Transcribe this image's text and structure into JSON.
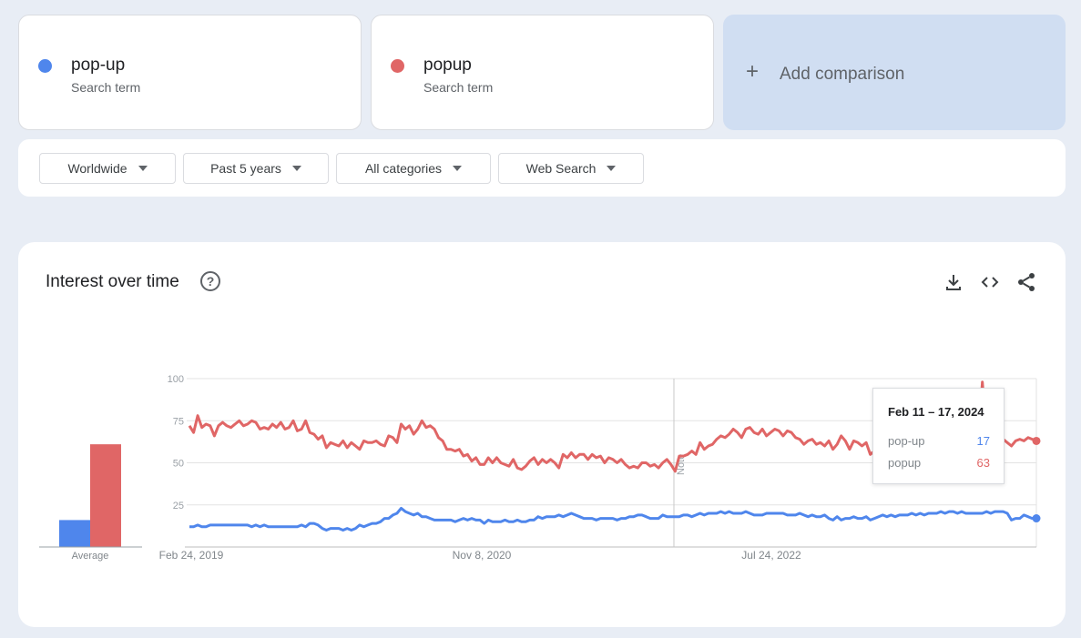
{
  "terms": [
    {
      "name": "pop-up",
      "subtitle": "Search term",
      "color": "#4f86ec"
    },
    {
      "name": "popup",
      "subtitle": "Search term",
      "color": "#e06666"
    }
  ],
  "add_comparison": {
    "label": "Add comparison",
    "icon": "plus-icon"
  },
  "filters": [
    {
      "label": "Worldwide"
    },
    {
      "label": "Past 5 years"
    },
    {
      "label": "All categories"
    },
    {
      "label": "Web Search"
    }
  ],
  "chart_section": {
    "title": "Interest over time",
    "help_icon": "help-circle-icon",
    "tools": [
      "download-icon",
      "embed-code-icon",
      "share-icon"
    ]
  },
  "chart_data": {
    "type": "line",
    "x_start": "Feb 24, 2019",
    "x_tick_labels": [
      "Feb 24, 2019",
      "Nov 8, 2020",
      "Jul 24, 2022"
    ],
    "y_ticks": [
      25,
      50,
      75,
      100
    ],
    "ylim": [
      0,
      100
    ],
    "grid": true,
    "note_label": "Note",
    "series": [
      {
        "name": "pop-up",
        "color": "#4f86ec",
        "average": 16,
        "values": [
          12,
          12,
          13,
          12,
          12,
          13,
          13,
          13,
          13,
          13,
          13,
          13,
          13,
          13,
          13,
          12,
          13,
          12,
          13,
          12,
          12,
          12,
          12,
          12,
          12,
          12,
          12,
          13,
          12,
          14,
          14,
          13,
          11,
          10,
          11,
          11,
          11,
          10,
          11,
          10,
          11,
          13,
          12,
          13,
          14,
          14,
          15,
          17,
          17,
          19,
          20,
          23,
          21,
          20,
          19,
          20,
          18,
          18,
          17,
          16,
          16,
          16,
          16,
          16,
          15,
          16,
          17,
          16,
          17,
          16,
          16,
          14,
          16,
          15,
          15,
          15,
          16,
          15,
          15,
          16,
          15,
          15,
          16,
          16,
          18,
          17,
          18,
          18,
          18,
          19,
          18,
          19,
          20,
          19,
          18,
          17,
          17,
          17,
          16,
          17,
          17,
          17,
          17,
          16,
          17,
          17,
          18,
          18,
          19,
          19,
          18,
          17,
          17,
          17,
          19,
          18,
          18,
          18,
          18,
          19,
          19,
          18,
          19,
          20,
          19,
          20,
          20,
          20,
          21,
          20,
          21,
          20,
          20,
          20,
          21,
          20,
          19,
          19,
          19,
          20,
          20,
          20,
          20,
          20,
          19,
          19,
          19,
          20,
          19,
          18,
          19,
          18,
          18,
          19,
          17,
          16,
          18,
          16,
          17,
          17,
          18,
          17,
          17,
          18,
          16,
          17,
          18,
          19,
          18,
          19,
          18,
          19,
          19,
          19,
          20,
          19,
          20,
          19,
          20,
          20,
          20,
          21,
          20,
          21,
          21,
          20,
          21,
          20,
          20,
          20,
          20,
          20,
          21,
          20,
          21,
          21,
          21,
          20,
          16,
          17,
          17,
          19,
          18,
          17,
          17
        ]
      },
      {
        "name": "popup",
        "color": "#e06666",
        "average": 61,
        "values": [
          72,
          68,
          78,
          71,
          73,
          72,
          66,
          72,
          74,
          72,
          71,
          73,
          75,
          72,
          73,
          75,
          74,
          70,
          71,
          70,
          73,
          71,
          74,
          70,
          71,
          75,
          69,
          70,
          75,
          68,
          67,
          64,
          66,
          59,
          62,
          61,
          60,
          63,
          59,
          62,
          60,
          58,
          63,
          62,
          62,
          63,
          61,
          60,
          66,
          65,
          62,
          73,
          70,
          72,
          67,
          70,
          75,
          71,
          72,
          70,
          65,
          63,
          58,
          58,
          57,
          58,
          54,
          55,
          51,
          53,
          49,
          49,
          53,
          50,
          53,
          50,
          49,
          48,
          52,
          47,
          46,
          48,
          51,
          53,
          49,
          52,
          50,
          52,
          50,
          47,
          55,
          53,
          56,
          53,
          55,
          55,
          52,
          55,
          53,
          54,
          50,
          53,
          52,
          50,
          52,
          49,
          47,
          48,
          47,
          50,
          50,
          48,
          49,
          47,
          50,
          52,
          49,
          45,
          54,
          54,
          55,
          57,
          55,
          62,
          58,
          60,
          61,
          64,
          66,
          65,
          67,
          70,
          68,
          65,
          70,
          71,
          68,
          67,
          70,
          66,
          68,
          70,
          69,
          66,
          69,
          68,
          65,
          64,
          61,
          63,
          64,
          61,
          62,
          60,
          63,
          58,
          61,
          66,
          63,
          58,
          63,
          62,
          60,
          62,
          55,
          57,
          63,
          64,
          60,
          58,
          61,
          61,
          61,
          66,
          60,
          68,
          61,
          62,
          66,
          62,
          64,
          64,
          63,
          65,
          68,
          64,
          63,
          65,
          64,
          60,
          63,
          98,
          63,
          67,
          62,
          63,
          64,
          62,
          60,
          63,
          64,
          63,
          65,
          64,
          63
        ]
      }
    ],
    "tooltip": {
      "date": "Feb 11 – 17, 2024",
      "rows": [
        {
          "term": "pop-up",
          "value": "17",
          "color": "#4f86ec"
        },
        {
          "term": "popup",
          "value": "63",
          "color": "#e06666"
        }
      ]
    },
    "average_label": "Average"
  }
}
